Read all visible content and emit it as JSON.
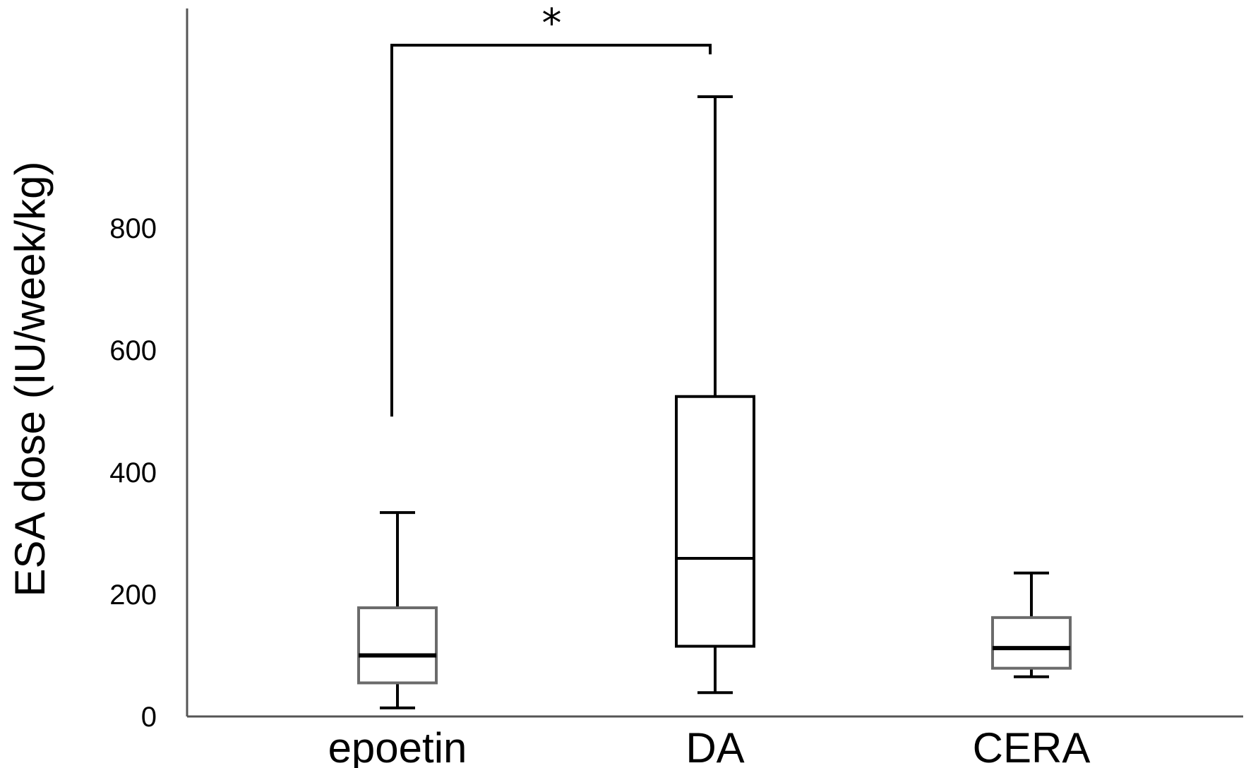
{
  "chart_data": {
    "type": "boxplot",
    "ylabel": "ESA dose (IU/week/kg)",
    "ylim": [
      0,
      1150
    ],
    "yticks": [
      0,
      200,
      400,
      600,
      800
    ],
    "ytick_labels": [
      "0",
      "200",
      "400",
      "600",
      "800"
    ],
    "grid": false,
    "categories": [
      "epoetin",
      "DA",
      "CERA"
    ],
    "boxes": [
      {
        "name": "epoetin",
        "min": 14,
        "q1": 55,
        "median": 100,
        "q3": 178,
        "max": 334
      },
      {
        "name": "DA",
        "min": 39,
        "q1": 115,
        "median": 259,
        "q3": 524,
        "max": 1015
      },
      {
        "name": "CERA",
        "min": 65,
        "q1": 79,
        "median": 112,
        "q3": 162,
        "max": 235
      }
    ],
    "significance": [
      {
        "from": "epoetin",
        "to": "DA",
        "label": "*"
      }
    ],
    "colors": {
      "axis": "#555555",
      "box": "#000000"
    }
  }
}
